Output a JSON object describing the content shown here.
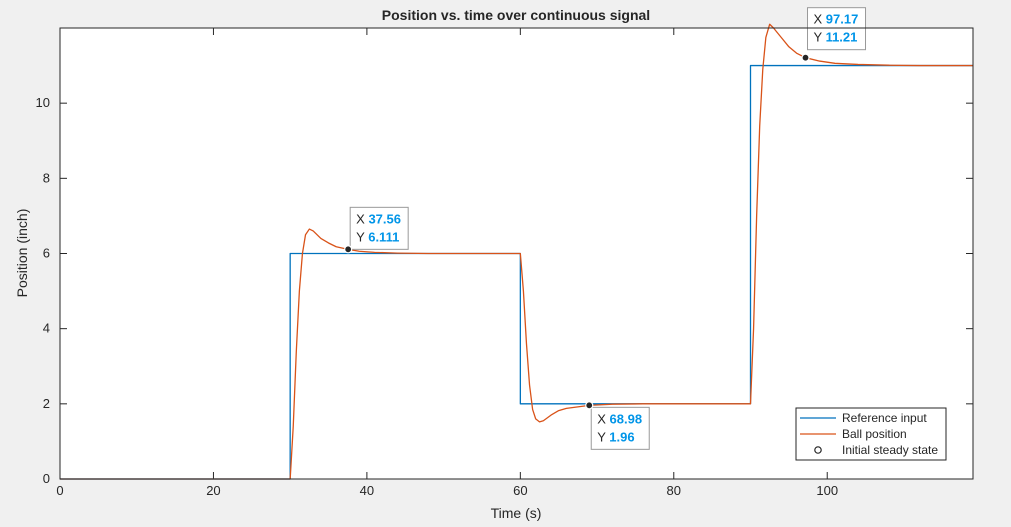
{
  "chart_data": {
    "type": "line",
    "title": "Position vs. time over continuous signal",
    "xlabel": "Time (s)",
    "ylabel": "Position (inch)",
    "xlim": [
      0,
      119
    ],
    "ylim": [
      0,
      12
    ],
    "xticks": [
      0,
      20,
      40,
      60,
      80,
      100
    ],
    "yticks": [
      0,
      2,
      4,
      6,
      8,
      10
    ],
    "grid": false,
    "legend_position": "bottom-right",
    "series": [
      {
        "name": "Reference input",
        "color": "#0072bd",
        "style": "step",
        "x": [
          0,
          30,
          30,
          60,
          60,
          90,
          90,
          119
        ],
        "y": [
          0,
          0,
          6,
          6,
          2,
          2,
          11,
          11
        ]
      },
      {
        "name": "Ball position",
        "color": "#d95319",
        "style": "line",
        "x": [
          0,
          30,
          30.4,
          30.8,
          31.2,
          31.6,
          32,
          32.5,
          33,
          34,
          35,
          36,
          37.56,
          39,
          41,
          44,
          48,
          52,
          56,
          60,
          60.4,
          60.8,
          61.2,
          61.6,
          62,
          62.5,
          63,
          64,
          65,
          66,
          68.98,
          72,
          76,
          80,
          85,
          90,
          90.4,
          90.8,
          91.2,
          91.6,
          92,
          92.5,
          93,
          94,
          95,
          96,
          97.17,
          99,
          101,
          104,
          108,
          112,
          119
        ],
        "y": [
          0,
          0,
          1.4,
          3.4,
          5.0,
          6.0,
          6.5,
          6.65,
          6.6,
          6.4,
          6.28,
          6.18,
          6.111,
          6.06,
          6.03,
          6.01,
          6.0,
          6.0,
          6.0,
          6.0,
          5.0,
          3.6,
          2.5,
          1.85,
          1.6,
          1.52,
          1.55,
          1.7,
          1.82,
          1.88,
          1.96,
          1.99,
          2.0,
          2.0,
          2.0,
          2.0,
          4.0,
          7.0,
          9.4,
          10.9,
          11.75,
          12.1,
          12.0,
          11.75,
          11.5,
          11.33,
          11.21,
          11.12,
          11.06,
          11.03,
          11.01,
          11.0,
          11.0
        ]
      },
      {
        "name": "Initial steady state",
        "marker": "circle",
        "x": [],
        "y": []
      }
    ],
    "datatips": [
      {
        "x_label": "X",
        "y_label": "Y",
        "x": "37.56",
        "y": "6.111"
      },
      {
        "x_label": "X",
        "y_label": "Y",
        "x": "68.98",
        "y": "1.96"
      },
      {
        "x_label": "X",
        "y_label": "Y",
        "x": "97.17",
        "y": "11.21"
      }
    ]
  }
}
